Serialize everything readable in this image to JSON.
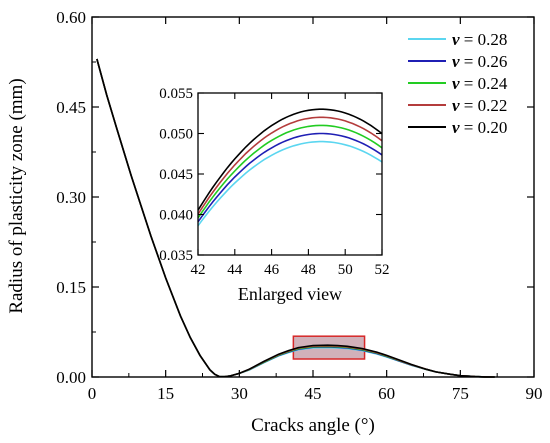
{
  "chart_data": {
    "type": "line",
    "xlabel": "Cracks angle (°)",
    "ylabel": "Radius of plasticity zone (mm)",
    "xlim": [
      0,
      90
    ],
    "ylim": [
      0,
      0.6
    ],
    "x_ticks": [
      0,
      15,
      30,
      45,
      60,
      75,
      90
    ],
    "x_tick_labels": [
      "0",
      "15",
      "30",
      "45",
      "60",
      "75",
      "90"
    ],
    "y_ticks": [
      0,
      0.15,
      0.3,
      0.45,
      0.6
    ],
    "y_tick_labels": [
      "0.00",
      "0.15",
      "0.30",
      "0.45",
      "0.60"
    ],
    "grid": false,
    "legend_position": "top-right",
    "series": [
      {
        "name": "v = 0.28",
        "legend_var": "v",
        "legend_val": " = 0.28",
        "color": "#5bd6f0",
        "peak": 0.049
      },
      {
        "name": "v = 0.26",
        "legend_var": "v",
        "legend_val": " = 0.26",
        "color": "#1f1fb4",
        "peak": 0.05
      },
      {
        "name": "v = 0.24",
        "legend_var": "v",
        "legend_val": " = 0.24",
        "color": "#22cc22",
        "peak": 0.051
      },
      {
        "name": "v = 0.22",
        "legend_var": "v",
        "legend_val": " = 0.22",
        "color": "#b43c3c",
        "peak": 0.052
      },
      {
        "name": "v = 0.20",
        "legend_var": "v",
        "legend_val": " = 0.20",
        "color": "#000000",
        "peak": 0.053
      }
    ],
    "curve_points": {
      "x": [
        1,
        3,
        5,
        8,
        10,
        12,
        15,
        18,
        20,
        22,
        24,
        25,
        26,
        27,
        28,
        30,
        32,
        35,
        38,
        40,
        42,
        45,
        48,
        50,
        52,
        55,
        58,
        60,
        63,
        65,
        68,
        70,
        73,
        75,
        78,
        80,
        82
      ],
      "base": [
        0.53,
        0.47,
        0.415,
        0.335,
        0.285,
        0.235,
        0.165,
        0.102,
        0.066,
        0.036,
        0.012,
        0.0045,
        0.0005,
        0.0005,
        0.0015,
        0.006,
        0.013,
        0.026,
        0.038,
        0.044,
        0.049,
        0.0525,
        0.053,
        0.0525,
        0.0512,
        0.0475,
        0.0415,
        0.036,
        0.027,
        0.021,
        0.013,
        0.0085,
        0.0045,
        0.0022,
        0.0007,
        0.0002,
        0.0
      ]
    },
    "highlight_box": {
      "x": [
        41,
        55.5
      ],
      "y": [
        0.03,
        0.068
      ]
    },
    "inset": {
      "title": "Enlarged view",
      "xlim": [
        42,
        52
      ],
      "ylim": [
        0.035,
        0.055
      ],
      "x_ticks": [
        42,
        44,
        46,
        48,
        50,
        52
      ],
      "x_tick_labels": [
        "42",
        "44",
        "46",
        "48",
        "50",
        "52"
      ],
      "y_ticks": [
        0.035,
        0.04,
        0.045,
        0.05,
        0.055
      ],
      "y_tick_labels": [
        "0.035",
        "0.040",
        "0.045",
        "0.050",
        "0.055"
      ],
      "peak_x": 48.7,
      "half_width": 7.2,
      "drop_at_edge": 0.012
    }
  }
}
